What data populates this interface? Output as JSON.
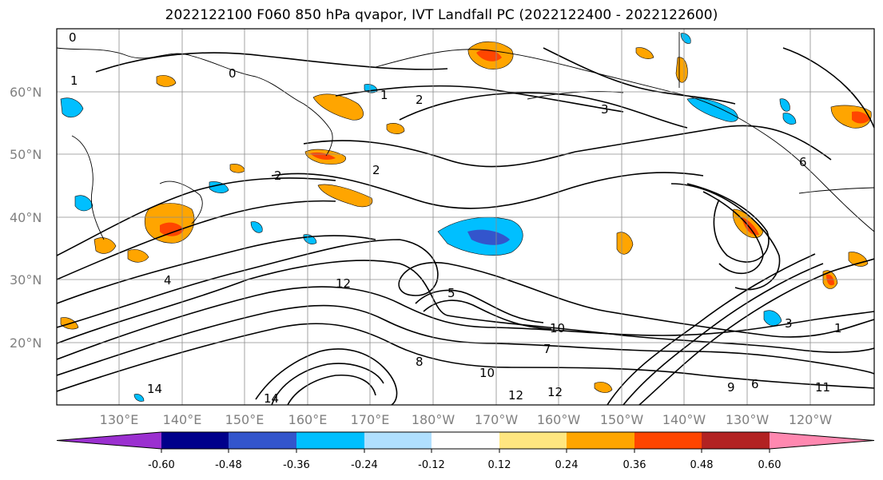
{
  "title": "2022122100 F060 850 hPa qvapor, IVT Landfall PC (2022122400 - 2022122600)",
  "map": {
    "lat_labels": [
      "60°N",
      "50°N",
      "40°N",
      "30°N",
      "20°N"
    ],
    "lon_labels": [
      "130°E",
      "140°E",
      "150°E",
      "160°E",
      "170°E",
      "180°W",
      "170°W",
      "160°W",
      "150°W",
      "140°W",
      "130°W",
      "120°W"
    ],
    "gridline_color": "#8c8c8c",
    "coastline_color": "#000000",
    "contour_color": "#000000",
    "contour_labels": [
      "0",
      "0",
      "1",
      "1",
      "2",
      "2",
      "2",
      "3",
      "4",
      "5",
      "6",
      "7",
      "8",
      "10",
      "10",
      "12",
      "12",
      "12",
      "14",
      "14",
      "1",
      "3",
      "6",
      "9",
      "11"
    ]
  },
  "colorbar": {
    "levels": [
      "-0.60",
      "-0.48",
      "-0.36",
      "-0.24",
      "-0.12",
      "0.12",
      "0.24",
      "0.36",
      "0.48",
      "0.60"
    ],
    "colors": [
      "#9b30d0",
      "#00008b",
      "#3355cc",
      "#00bfff",
      "#b0e0ff",
      "#ffffff",
      "#ffe680",
      "#ffa500",
      "#ff4500",
      "#b22222",
      "#ff88b0"
    ],
    "extend": "both"
  }
}
